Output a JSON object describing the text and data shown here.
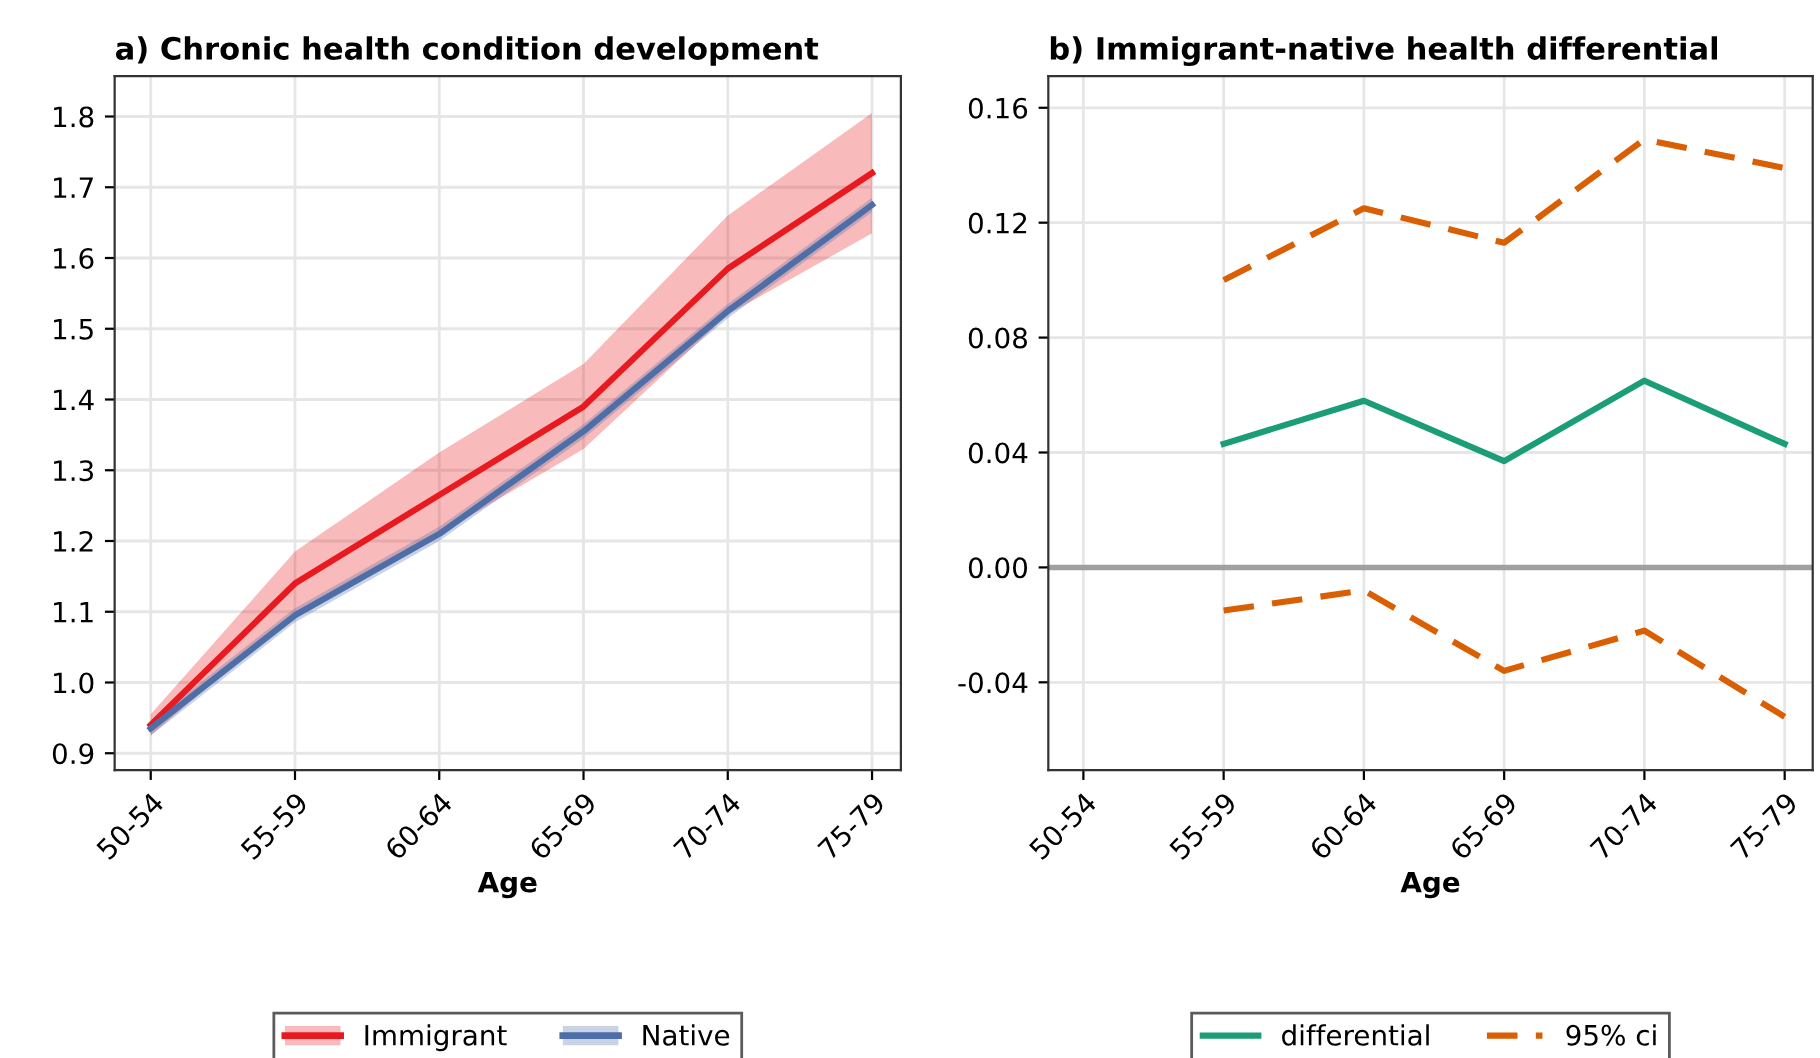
{
  "chart_data": [
    {
      "type": "line",
      "title": "a) Chronic health condition development",
      "xlabel": "Age",
      "categories": [
        "50-54",
        "55-59",
        "60-64",
        "65-69",
        "70-74",
        "75-79"
      ],
      "ylim": [
        0.876,
        1.857
      ],
      "yticks": [
        {
          "value": 0.9,
          "label": "0.9"
        },
        {
          "value": 1.0,
          "label": "1.0"
        },
        {
          "value": 1.1,
          "label": "1.1"
        },
        {
          "value": 1.2,
          "label": "1.2"
        },
        {
          "value": 1.3,
          "label": "1.3"
        },
        {
          "value": 1.4,
          "label": "1.4"
        },
        {
          "value": 1.5,
          "label": "1.5"
        },
        {
          "value": 1.6,
          "label": "1.6"
        },
        {
          "value": 1.7,
          "label": "1.7"
        },
        {
          "value": 1.8,
          "label": "1.8"
        }
      ],
      "grid": true,
      "legend": "bottom",
      "series": [
        {
          "name": "Immigrant",
          "color": "#e8191f",
          "values": [
            0.94,
            1.14,
            1.265,
            1.39,
            1.585,
            1.72
          ],
          "lower": [
            0.925,
            1.1,
            1.21,
            1.33,
            1.52,
            1.635
          ],
          "upper": [
            0.955,
            1.185,
            1.325,
            1.45,
            1.66,
            1.805
          ]
        },
        {
          "name": "Native",
          "color": "#4e6ea8",
          "values": [
            0.935,
            1.095,
            1.21,
            1.355,
            1.525,
            1.675
          ],
          "lower": [
            0.925,
            1.085,
            1.2,
            1.345,
            1.515,
            1.665
          ],
          "upper": [
            0.945,
            1.105,
            1.22,
            1.365,
            1.535,
            1.685
          ]
        }
      ]
    },
    {
      "type": "line",
      "title": "b) Immigrant-native health differential",
      "xlabel": "Age",
      "categories": [
        "50-54",
        "55-59",
        "60-64",
        "65-69",
        "70-74",
        "75-79"
      ],
      "ylim": [
        -0.0706,
        0.171
      ],
      "yticks": [
        {
          "value": -0.04,
          "label": "-0.04"
        },
        {
          "value": 0.0,
          "label": "0.00"
        },
        {
          "value": 0.04,
          "label": "0.04"
        },
        {
          "value": 0.08,
          "label": "0.08"
        },
        {
          "value": 0.12,
          "label": "0.12"
        },
        {
          "value": 0.16,
          "label": "0.16"
        }
      ],
      "grid": true,
      "legend": "bottom",
      "ref_lines": [
        {
          "axis": "y",
          "value": 0,
          "label": null,
          "color": "#a0a0a0"
        }
      ],
      "series": [
        {
          "name": "differential",
          "color": "#1b9e77",
          "line_style": "solid",
          "values": [
            null,
            0.043,
            0.058,
            0.037,
            0.065,
            0.043
          ]
        },
        {
          "name": "95% ci",
          "color": "#d95f02",
          "line_style": "dashed",
          "values": [
            null,
            0.1,
            0.125,
            0.113,
            0.149,
            0.139
          ]
        },
        {
          "color": "#d95f02",
          "line_style": "dashed",
          "values": [
            null,
            -0.015,
            -0.008,
            -0.036,
            -0.022,
            -0.052
          ]
        }
      ]
    }
  ]
}
